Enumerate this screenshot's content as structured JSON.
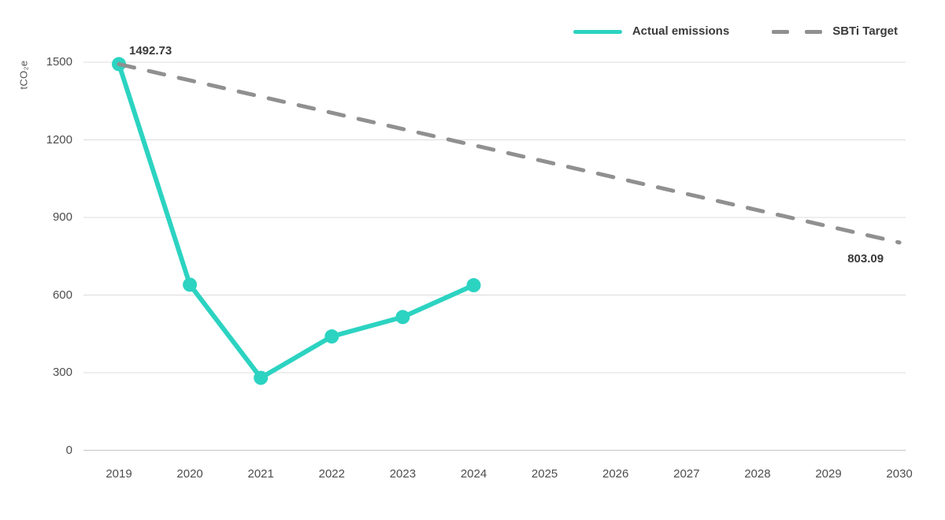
{
  "chart_data": {
    "type": "line",
    "title": "",
    "ylabel": "tCO₂e",
    "xlabel": "",
    "x_ticks": [
      2019,
      2020,
      2021,
      2022,
      2023,
      2024,
      2025,
      2026,
      2027,
      2028,
      2029,
      2030
    ],
    "y_ticks": [
      0,
      300,
      600,
      900,
      1200,
      1500
    ],
    "ylim": [
      0,
      1500
    ],
    "xlim": [
      2019,
      2030
    ],
    "grid": "horizontal",
    "legend_position": "top-right",
    "colors": {
      "actual": "#2cd3c1",
      "target": "#909090",
      "gridline": "#dcdcdc",
      "baseline": "#c6c6c6",
      "axis_text": "#4d4d4d",
      "label_text": "#3a3a3a"
    },
    "series": [
      {
        "name": "Actual emissions",
        "color": "#2cd3c1",
        "style": "solid",
        "markers": true,
        "x": [
          2019,
          2020,
          2021,
          2022,
          2023,
          2024
        ],
        "values": [
          1492.73,
          640,
          280,
          440,
          515,
          638
        ]
      },
      {
        "name": "SBTi Target",
        "color": "#909090",
        "style": "dashed",
        "markers": false,
        "x": [
          2019,
          2030
        ],
        "values": [
          1492.73,
          803.09
        ]
      }
    ],
    "annotations": [
      {
        "text": "1492.73",
        "year": 2019,
        "value": 1492.73,
        "placement": "above-right"
      },
      {
        "text": "803.09",
        "year": 2030,
        "value": 803.09,
        "placement": "below-left"
      }
    ]
  }
}
